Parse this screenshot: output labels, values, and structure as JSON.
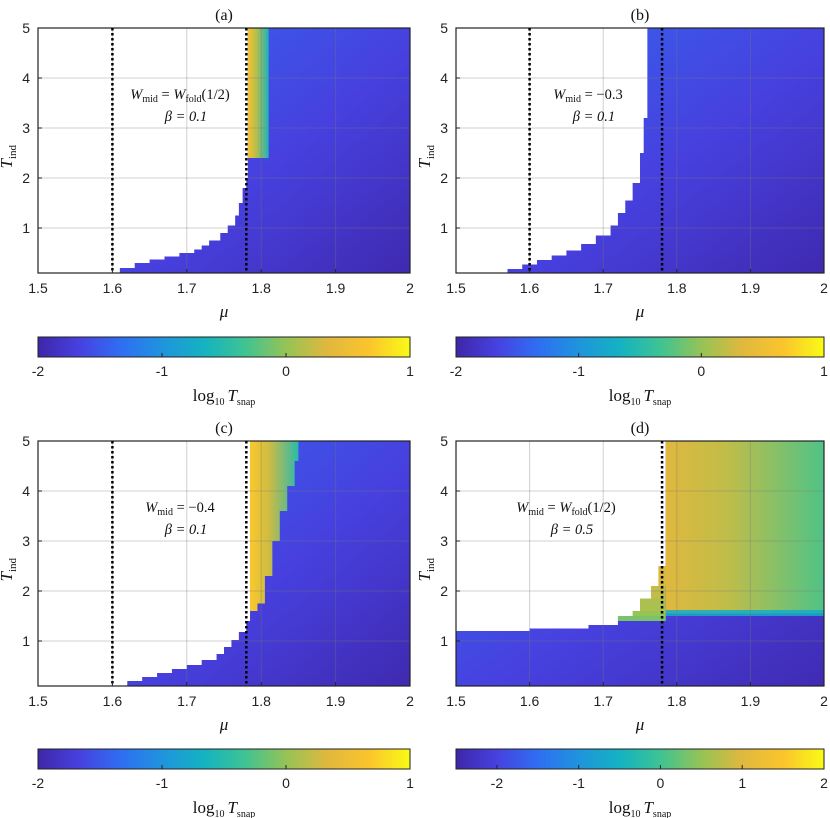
{
  "chart_data": [
    {
      "type": "heatmap",
      "title": "(a)",
      "xlabel": "μ",
      "ylabel": "T",
      "ylabel_sub": "ind",
      "xlim": [
        1.5,
        2
      ],
      "ylim": [
        0.1,
        5
      ],
      "xticks": [
        "1.5",
        "1.6",
        "1.7",
        "1.8",
        "1.9",
        "2"
      ],
      "yticks": [
        "1",
        "2",
        "3",
        "4",
        "5"
      ],
      "grid": true,
      "annotation": [
        "W_mid = W_fold(1/2)",
        "β = 0.1"
      ],
      "vlines": [
        1.6,
        1.78
      ],
      "boundary": [
        [
          1.6,
          0.1
        ],
        [
          1.61,
          0.2
        ],
        [
          1.63,
          0.3
        ],
        [
          1.65,
          0.37
        ],
        [
          1.67,
          0.43
        ],
        [
          1.69,
          0.5
        ],
        [
          1.71,
          0.57
        ],
        [
          1.72,
          0.65
        ],
        [
          1.73,
          0.75
        ],
        [
          1.745,
          0.9
        ],
        [
          1.755,
          1.05
        ],
        [
          1.765,
          1.25
        ],
        [
          1.77,
          1.5
        ],
        [
          1.775,
          1.8
        ],
        [
          1.78,
          2.0
        ],
        [
          1.782,
          2.4
        ],
        [
          1.782,
          5.0
        ]
      ],
      "hot_band": {
        "mu": [
          1.782,
          1.81
        ],
        "t": [
          2.4,
          5.0
        ],
        "log10_value": 0.6
      },
      "colorbar": {
        "label": "log",
        "label_sub": "10",
        "label_var": "T",
        "label_var_sub": "snap",
        "range": [
          -2,
          1
        ],
        "ticks": [
          "-2",
          "-1",
          "0",
          "1"
        ]
      }
    },
    {
      "type": "heatmap",
      "title": "(b)",
      "xlabel": "μ",
      "ylabel": "T",
      "ylabel_sub": "ind",
      "xlim": [
        1.5,
        2
      ],
      "ylim": [
        0.1,
        5
      ],
      "xticks": [
        "1.5",
        "1.6",
        "1.7",
        "1.8",
        "1.9",
        "2"
      ],
      "yticks": [
        "1",
        "2",
        "3",
        "4",
        "5"
      ],
      "grid": true,
      "annotation": [
        "W_mid = −0.3",
        "β = 0.1"
      ],
      "vlines": [
        1.6,
        1.78
      ],
      "boundary": [
        [
          1.55,
          0.1
        ],
        [
          1.57,
          0.18
        ],
        [
          1.59,
          0.27
        ],
        [
          1.61,
          0.36
        ],
        [
          1.63,
          0.45
        ],
        [
          1.65,
          0.55
        ],
        [
          1.67,
          0.68
        ],
        [
          1.69,
          0.85
        ],
        [
          1.71,
          1.05
        ],
        [
          1.72,
          1.3
        ],
        [
          1.73,
          1.55
        ],
        [
          1.74,
          1.9
        ],
        [
          1.75,
          2.5
        ],
        [
          1.755,
          3.2
        ],
        [
          1.76,
          4.2
        ],
        [
          1.76,
          5.0
        ]
      ],
      "hot_band": null,
      "colorbar": {
        "label": "log",
        "label_sub": "10",
        "label_var": "T",
        "label_var_sub": "snap",
        "range": [
          -2,
          1
        ],
        "ticks": [
          "-2",
          "-1",
          "0",
          "1"
        ]
      }
    },
    {
      "type": "heatmap",
      "title": "(c)",
      "xlabel": "μ",
      "ylabel": "T",
      "ylabel_sub": "ind",
      "xlim": [
        1.5,
        2
      ],
      "ylim": [
        0.1,
        5
      ],
      "xticks": [
        "1.5",
        "1.6",
        "1.7",
        "1.8",
        "1.9",
        "2"
      ],
      "yticks": [
        "1",
        "2",
        "3",
        "4",
        "5"
      ],
      "grid": true,
      "annotation": [
        "W_mid = −0.4",
        "β = 0.1"
      ],
      "vlines": [
        1.6,
        1.78
      ],
      "boundary": [
        [
          1.6,
          0.1
        ],
        [
          1.62,
          0.2
        ],
        [
          1.64,
          0.28
        ],
        [
          1.66,
          0.36
        ],
        [
          1.68,
          0.44
        ],
        [
          1.7,
          0.52
        ],
        [
          1.72,
          0.62
        ],
        [
          1.74,
          0.74
        ],
        [
          1.75,
          0.88
        ],
        [
          1.76,
          1.02
        ],
        [
          1.77,
          1.18
        ],
        [
          1.78,
          1.4
        ],
        [
          1.785,
          1.6
        ],
        [
          1.785,
          5.0
        ]
      ],
      "hot_band": {
        "mu": [
          1.785,
          1.85
        ],
        "t": [
          1.6,
          5.0
        ],
        "log10_value": 0.7
      },
      "colorbar": {
        "label": "log",
        "label_sub": "10",
        "label_var": "T",
        "label_var_sub": "snap",
        "range": [
          -2,
          1
        ],
        "ticks": [
          "-2",
          "-1",
          "0",
          "1"
        ]
      }
    },
    {
      "type": "heatmap",
      "title": "(d)",
      "xlabel": "μ",
      "ylabel": "T",
      "ylabel_sub": "ind",
      "xlim": [
        1.5,
        2
      ],
      "ylim": [
        0.1,
        5
      ],
      "xticks": [
        "1.5",
        "1.6",
        "1.7",
        "1.8",
        "1.9",
        "2"
      ],
      "yticks": [
        "1",
        "2",
        "3",
        "4",
        "5"
      ],
      "grid": true,
      "annotation": [
        "W_mid = W_fold(1/2)",
        "β = 0.5"
      ],
      "vlines": [
        1.78
      ],
      "boundary": [
        [
          1.5,
          1.2
        ],
        [
          1.6,
          1.25
        ],
        [
          1.68,
          1.32
        ],
        [
          1.72,
          1.4
        ],
        [
          1.75,
          1.6
        ],
        [
          1.765,
          1.85
        ],
        [
          1.775,
          2.1
        ],
        [
          1.785,
          2.5
        ],
        [
          1.785,
          5.0
        ]
      ],
      "hot_band": {
        "mu": [
          1.785,
          2.0
        ],
        "t": [
          1.5,
          5.0
        ],
        "log10_value": 1.0
      },
      "colorbar": {
        "label": "log",
        "label_sub": "10",
        "label_var": "T",
        "label_var_sub": "snap",
        "range": [
          -2.5,
          2
        ],
        "ticks": [
          "-2",
          "-1",
          "0",
          "1",
          "2"
        ]
      }
    }
  ],
  "colormap": [
    "#3e26a8",
    "#4741e0",
    "#2f6ef2",
    "#1f94dd",
    "#14b2c2",
    "#3ec393",
    "#95c356",
    "#e0b83e",
    "#fbc42d",
    "#f9fb15"
  ]
}
